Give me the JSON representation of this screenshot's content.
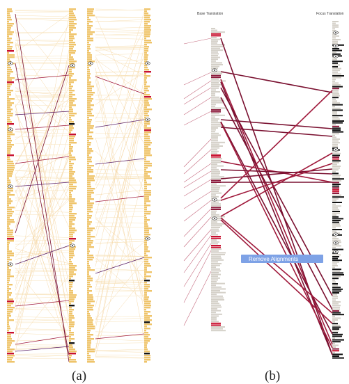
{
  "panels": {
    "a": {
      "caption": "(a)"
    },
    "b": {
      "caption": "(b)",
      "left_column_title": "Base Translation",
      "right_column_title": "Focus Translation",
      "context_menu": {
        "item": "Remove Alignments"
      }
    }
  },
  "colors": {
    "line_light": "#f2c987",
    "line_pale": "#f8e2b8",
    "bar_gold": "#efc46a",
    "bar_gray": "#d4d0c8",
    "bar_red": "#c8102e",
    "bar_dark_red": "#8c1b3c",
    "bar_black": "#111111",
    "line_crimson": "#a01a3c",
    "line_maroon": "#7a1030",
    "line_purple": "#5a1f66",
    "menu_blue": "#7ea2e6"
  }
}
